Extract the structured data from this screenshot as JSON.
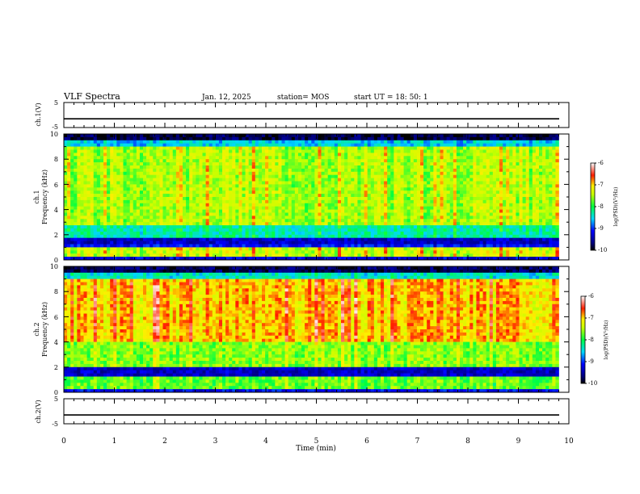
{
  "header": {
    "title": "VLF Spectra",
    "date": "Jan. 12, 2025",
    "station": "station= MOS",
    "start": "start UT =  18: 50: 1"
  },
  "chart_data": [
    {
      "type": "line",
      "name": "waveform-ch1",
      "ylabel": "ch.1(V)",
      "ylim": [
        -5,
        5
      ],
      "y_ticks": [
        "5",
        "-5"
      ],
      "baseline": -1.5,
      "xlim": [
        0,
        10
      ]
    },
    {
      "type": "heatmap",
      "name": "spectrogram-ch1",
      "ylabel_line1": "ch.1",
      "ylabel_line2": "Frequency (kHz)",
      "ylim": [
        0,
        10
      ],
      "y_ticks": [
        "0",
        "2",
        "4",
        "6",
        "8",
        "10"
      ],
      "xlim": [
        0,
        9.8
      ],
      "colorbar": {
        "label": "log(PSD)(V²/Hz)",
        "range": [
          -10,
          -6
        ],
        "ticks": [
          "-6",
          "-7",
          "-8",
          "-9",
          "-10"
        ]
      }
    },
    {
      "type": "heatmap",
      "name": "spectrogram-ch2",
      "ylabel_line1": "ch.2",
      "ylabel_line2": "Frequency (kHz)",
      "ylim": [
        0,
        10
      ],
      "y_ticks": [
        "0",
        "2",
        "4",
        "6",
        "8",
        "10"
      ],
      "xlim": [
        0,
        9.8
      ],
      "colorbar": {
        "label": "log(PSD)(V²/Hz)",
        "range": [
          -10,
          -6
        ],
        "ticks": [
          "-6",
          "-7",
          "-8",
          "-9",
          "-10"
        ]
      }
    },
    {
      "type": "line",
      "name": "waveform-ch2",
      "ylabel": "ch.2(V)",
      "ylim": [
        -5,
        5
      ],
      "y_ticks": [
        "5",
        "-5"
      ],
      "baseline": -1.5,
      "xlim": [
        0,
        10
      ]
    }
  ],
  "xaxis": {
    "label": "Time (min)",
    "ticks": [
      "0",
      "1",
      "2",
      "3",
      "4",
      "5",
      "6",
      "7",
      "8",
      "9",
      "10"
    ]
  }
}
